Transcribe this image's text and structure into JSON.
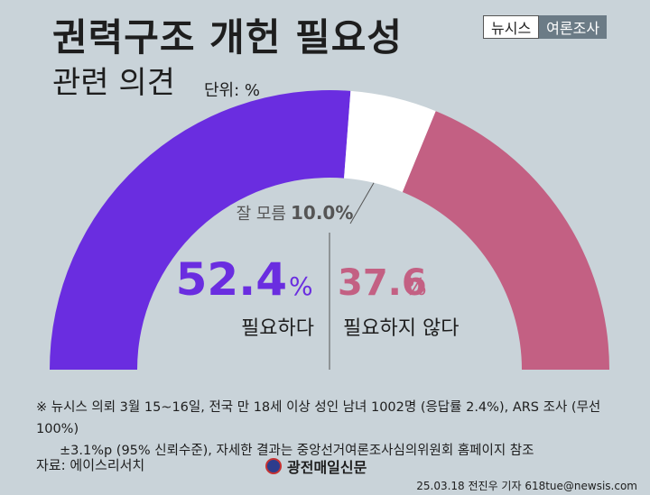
{
  "header": {
    "title_line1": "권력구조 개헌 필요성",
    "title_line2": "관련 의견",
    "unit": "단위: %"
  },
  "brand": {
    "left": "뉴시스",
    "right": "여론조사"
  },
  "chart_data": {
    "type": "pie",
    "style": "half-donut",
    "categories": [
      "필요하다",
      "잘 모름",
      "필요하지 않다"
    ],
    "values": [
      52.4,
      10.0,
      37.6
    ],
    "colors": [
      "#6a2de0",
      "#ffffff",
      "#c36083"
    ],
    "labels": {
      "agree_value": "52.4",
      "agree_label": "필요하다",
      "unknown_text": "잘 모름",
      "unknown_value": "10.0%",
      "disagree_value": "37.6",
      "disagree_label": "필요하지 않다",
      "percent": "%"
    }
  },
  "footer": {
    "note_line1": "※ 뉴시스 의뢰 3월 15~16일, 전국 만 18세 이상 성인 남녀 1002명 (응답률 2.4%), ARS 조사 (무선 100%)",
    "note_line2": "±3.1%p (95% 신뢰수준), 자세한 결과는 중앙선거여론조사심의위원회 홈페이지 참조",
    "source": "자료: 에이스리서치",
    "publisher": "광전매일신문",
    "credit": "25.03.18 전진우 기자 618tue@newsis.com"
  }
}
